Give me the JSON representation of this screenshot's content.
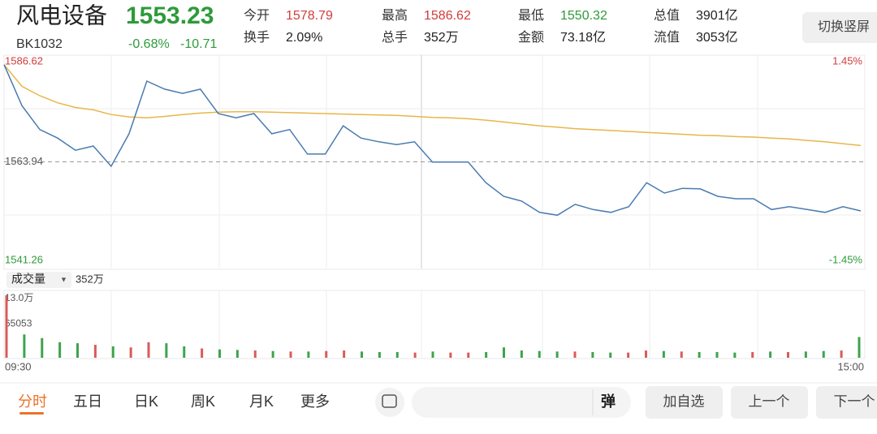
{
  "header": {
    "name": "风电设备",
    "price": "1553.23",
    "code": "BK1032",
    "change_pct": "-0.68%",
    "change": "-10.71",
    "button": "切换竖屏",
    "stats": [
      {
        "label": "今开",
        "value": "1578.79",
        "color": "#d23b3b"
      },
      {
        "label": "换手",
        "value": "2.09%",
        "color": "#222"
      },
      {
        "label": "最高",
        "value": "1586.62",
        "color": "#d23b3b"
      },
      {
        "label": "总手",
        "value": "352万",
        "color": "#222"
      },
      {
        "label": "最低",
        "value": "1550.32",
        "color": "#2e9a3a"
      },
      {
        "label": "金额",
        "value": "73.18亿",
        "color": "#222"
      },
      {
        "label": "总值",
        "value": "3901亿",
        "color": "#222"
      },
      {
        "label": "流值",
        "value": "3053亿",
        "color": "#222"
      }
    ]
  },
  "chart_data": [
    {
      "type": "line",
      "ylim": [
        1541.26,
        1586.62
      ],
      "yticks": [
        1541.26,
        1563.94,
        1586.62
      ],
      "pct_labels": [
        "-1.45%",
        "1.45%"
      ],
      "series": [
        {
          "name": "price",
          "color": "#4a7bb0",
          "values": [
            1584.6,
            1575.9,
            1570.8,
            1569.0,
            1566.4,
            1567.3,
            1563.0,
            1569.9,
            1581.1,
            1579.4,
            1578.5,
            1579.4,
            1574.2,
            1573.3,
            1574.2,
            1569.9,
            1570.8,
            1565.6,
            1565.6,
            1571.6,
            1569.0,
            1568.2,
            1567.6,
            1568.2,
            1563.9,
            1563.9,
            1563.9,
            1559.5,
            1556.6,
            1555.6,
            1553.2,
            1552.6,
            1554.9,
            1553.8,
            1553.2,
            1554.4,
            1559.5,
            1557.3,
            1558.3,
            1558.2,
            1556.6,
            1556.1,
            1556.1,
            1553.8,
            1554.4,
            1553.8,
            1553.2,
            1554.4,
            1553.5
          ]
        },
        {
          "name": "avg",
          "color": "#e8b64a",
          "values": [
            1584.6,
            1580.0,
            1578.0,
            1576.5,
            1575.5,
            1575.0,
            1574.0,
            1573.5,
            1573.3,
            1573.6,
            1574.0,
            1574.3,
            1574.5,
            1574.6,
            1574.6,
            1574.5,
            1574.4,
            1574.3,
            1574.2,
            1574.1,
            1574.0,
            1573.9,
            1573.8,
            1573.6,
            1573.4,
            1573.3,
            1573.1,
            1572.8,
            1572.4,
            1572.0,
            1571.6,
            1571.3,
            1571.0,
            1570.8,
            1570.6,
            1570.4,
            1570.2,
            1570.0,
            1569.8,
            1569.6,
            1569.5,
            1569.3,
            1569.2,
            1569.0,
            1568.8,
            1568.5,
            1568.2,
            1567.8,
            1567.4
          ]
        }
      ],
      "time_labels": [
        "09:30",
        "15:00"
      ]
    },
    {
      "type": "bar",
      "title": "成交量",
      "total": "352万",
      "ylim": [
        0,
        130000
      ],
      "yticks": [
        {
          "value": 130000,
          "label": "13.0万"
        },
        65053
      ],
      "up_color": "#d95b5b",
      "down_color": "#3fa34d",
      "values": [
        120000,
        45000,
        38000,
        30000,
        28000,
        25000,
        22000,
        20000,
        30000,
        28000,
        22000,
        18000,
        16000,
        15000,
        14000,
        13000,
        12000,
        12000,
        13000,
        14000,
        12000,
        11000,
        11000,
        10000,
        12000,
        10000,
        10000,
        11000,
        20000,
        14000,
        13000,
        12000,
        12000,
        11000,
        10000,
        10000,
        14000,
        13000,
        12000,
        11000,
        11000,
        10000,
        11000,
        12000,
        11000,
        12000,
        13000,
        14000,
        40000
      ]
    }
  ],
  "nav": {
    "tabs": [
      "分时",
      "五日",
      "日K",
      "周K",
      "月K",
      "更多"
    ],
    "input_button": "弹",
    "buttons": [
      "加自选",
      "上一个",
      "下一个"
    ]
  }
}
